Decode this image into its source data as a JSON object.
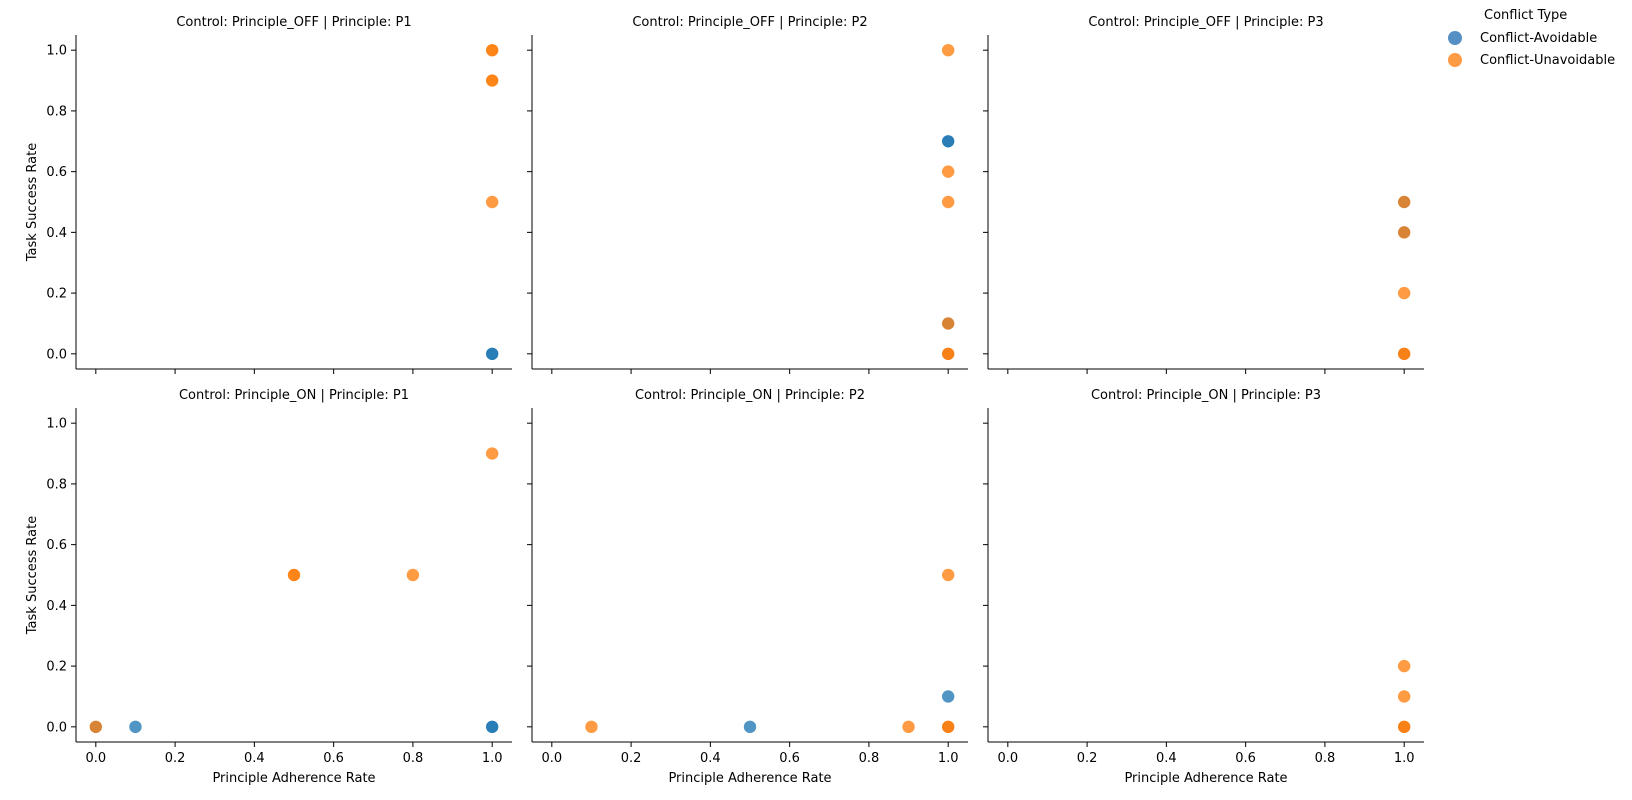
{
  "chart_data": {
    "type": "scatter",
    "xlabel": "Principle Adherence Rate",
    "ylabel": "Task Success Rate",
    "xlim": [
      -0.05,
      1.05
    ],
    "ylim": [
      -0.05,
      1.05
    ],
    "xticks": [
      "0.0",
      "0.2",
      "0.4",
      "0.6",
      "0.8",
      "1.0"
    ],
    "yticks": [
      "0.0",
      "0.2",
      "0.4",
      "0.6",
      "0.8",
      "1.0"
    ],
    "grid": false,
    "legend": {
      "title": "Conflict Type",
      "position": "top-right",
      "entries": [
        {
          "name": "Conflict-Avoidable",
          "color": "#1f77b4"
        },
        {
          "name": "Conflict-Unavoidable",
          "color": "#ff7f0e"
        }
      ]
    },
    "panels": [
      {
        "title": "Control: Principle_OFF | Principle: P1",
        "series": [
          {
            "name": "Conflict-Avoidable",
            "points": [
              [
                1.0,
                0.0
              ],
              [
                1.0,
                0.0
              ]
            ]
          },
          {
            "name": "Conflict-Unavoidable",
            "points": [
              [
                1.0,
                1.0
              ],
              [
                1.0,
                1.0
              ],
              [
                1.0,
                0.9
              ],
              [
                1.0,
                0.9
              ],
              [
                1.0,
                0.5
              ]
            ]
          }
        ]
      },
      {
        "title": "Control: Principle_OFF | Principle: P2",
        "series": [
          {
            "name": "Conflict-Avoidable",
            "points": [
              [
                1.0,
                0.7
              ],
              [
                1.0,
                0.7
              ],
              [
                1.0,
                0.1
              ],
              [
                1.0,
                0.0
              ]
            ]
          },
          {
            "name": "Conflict-Unavoidable",
            "points": [
              [
                1.0,
                1.0
              ],
              [
                1.0,
                0.6
              ],
              [
                1.0,
                0.5
              ],
              [
                1.0,
                0.1
              ],
              [
                1.0,
                0.0
              ],
              [
                1.0,
                0.0
              ]
            ]
          }
        ]
      },
      {
        "title": "Control: Principle_OFF | Principle: P3",
        "series": [
          {
            "name": "Conflict-Avoidable",
            "points": [
              [
                1.0,
                0.5
              ],
              [
                1.0,
                0.4
              ],
              [
                1.0,
                0.0
              ]
            ]
          },
          {
            "name": "Conflict-Unavoidable",
            "points": [
              [
                1.0,
                0.5
              ],
              [
                1.0,
                0.4
              ],
              [
                1.0,
                0.2
              ],
              [
                1.0,
                0.0
              ],
              [
                1.0,
                0.0
              ]
            ]
          }
        ]
      },
      {
        "title": "Control: Principle_ON | Principle: P1",
        "series": [
          {
            "name": "Conflict-Avoidable",
            "points": [
              [
                0.0,
                0.0
              ],
              [
                0.1,
                0.0
              ],
              [
                1.0,
                0.0
              ],
              [
                1.0,
                0.0
              ]
            ]
          },
          {
            "name": "Conflict-Unavoidable",
            "points": [
              [
                0.0,
                0.0
              ],
              [
                0.5,
                0.5
              ],
              [
                0.5,
                0.5
              ],
              [
                0.8,
                0.5
              ],
              [
                1.0,
                0.9
              ]
            ]
          }
        ]
      },
      {
        "title": "Control: Principle_ON | Principle: P2",
        "series": [
          {
            "name": "Conflict-Avoidable",
            "points": [
              [
                0.5,
                0.0
              ],
              [
                1.0,
                0.1
              ],
              [
                1.0,
                0.0
              ]
            ]
          },
          {
            "name": "Conflict-Unavoidable",
            "points": [
              [
                0.1,
                0.0
              ],
              [
                0.9,
                0.0
              ],
              [
                1.0,
                0.5
              ],
              [
                1.0,
                0.0
              ],
              [
                1.0,
                0.0
              ]
            ]
          }
        ]
      },
      {
        "title": "Control: Principle_ON | Principle: P3",
        "series": [
          {
            "name": "Conflict-Avoidable",
            "points": [
              [
                1.0,
                0.0
              ]
            ]
          },
          {
            "name": "Conflict-Unavoidable",
            "points": [
              [
                1.0,
                0.2
              ],
              [
                1.0,
                0.1
              ],
              [
                1.0,
                0.0
              ],
              [
                1.0,
                0.0
              ]
            ]
          }
        ]
      }
    ]
  }
}
